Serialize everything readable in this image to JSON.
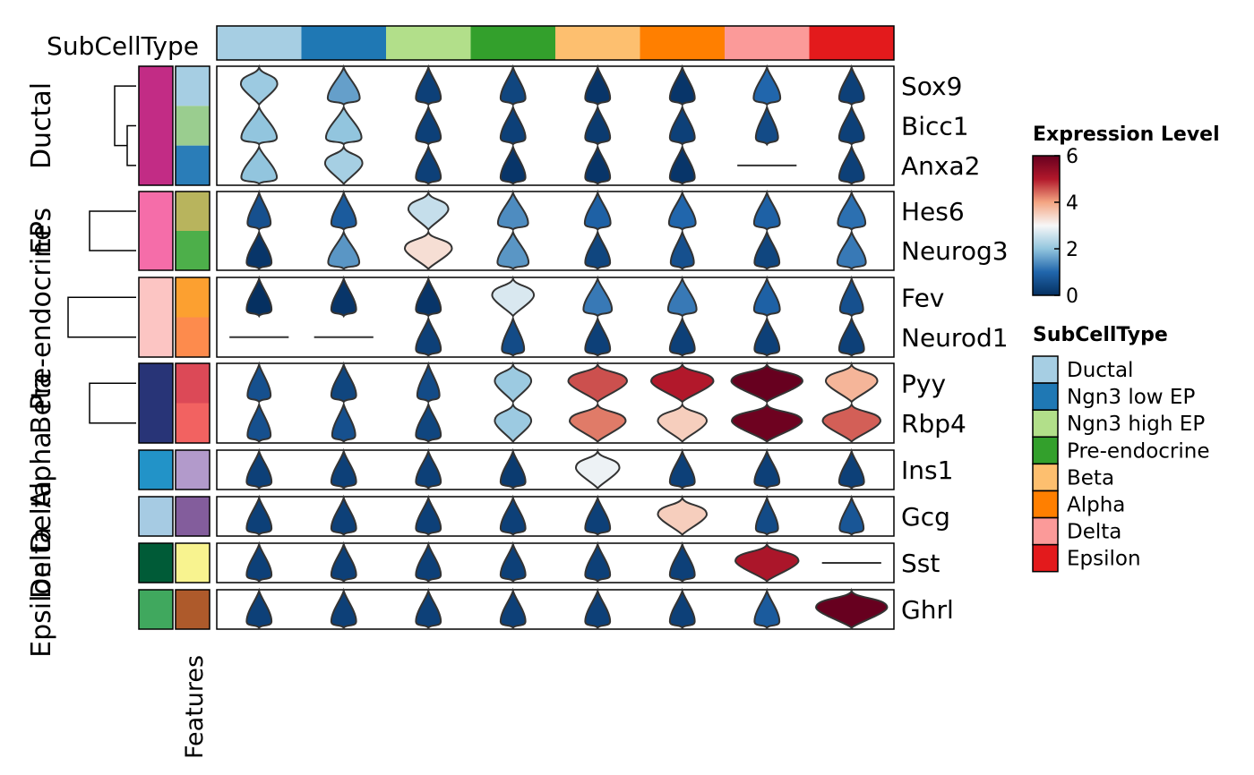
{
  "chart_data": {
    "type": "violin-heatmap",
    "top_annotation": {
      "title": "SubCellType",
      "colors": [
        "#A6CEE3",
        "#1F78B4",
        "#B2DF8A",
        "#33A02C",
        "#FDBF6F",
        "#FF7F00",
        "#FB9A99",
        "#E31A1C"
      ]
    },
    "categories": [
      "Ductal",
      "Ngn3 low EP",
      "Ngn3 high EP",
      "Pre-endocrine",
      "Beta",
      "Alpha",
      "Delta",
      "Epsilon"
    ],
    "row_groups": [
      {
        "label": "Ductal",
        "color": "#C22C85",
        "features": [
          "Sox9",
          "Bicc1",
          "Anxa2"
        ],
        "feature_colors": [
          "#A6CEE3",
          "#9ACD8F",
          "#2A7DB8"
        ]
      },
      {
        "label": "EPs",
        "color": "#F56DA9",
        "features": [
          "Hes6",
          "Neurog3"
        ],
        "feature_colors": [
          "#B8B45D",
          "#4DAF4A"
        ]
      },
      {
        "label": "Pre-endocrine",
        "color": "#FCC5C3",
        "features": [
          "Fev",
          "Neurod1"
        ],
        "feature_colors": [
          "#FCA030",
          "#FD8B4D"
        ]
      },
      {
        "label": "Beta",
        "color": "#283477",
        "features": [
          "Pyy",
          "Rbp4"
        ],
        "feature_colors": [
          "#DC4957",
          "#F26261"
        ]
      },
      {
        "label": "Alpha",
        "color": "#2293C8",
        "features": [
          "Ins1"
        ],
        "feature_colors": [
          "#B29ACB"
        ]
      },
      {
        "label": "Delta",
        "color": "#A6CBE3",
        "features": [
          "Gcg"
        ],
        "feature_colors": [
          "#835D9C"
        ]
      },
      {
        "label": "Delta",
        "color": "#005B37",
        "features": [
          "Sst"
        ],
        "feature_colors": [
          "#F8F38F"
        ]
      },
      {
        "label": "Epsilon",
        "color": "#40A85E",
        "features": [
          "Ghrl"
        ],
        "feature_colors": [
          "#AE5A2B"
        ]
      }
    ],
    "features_axis_label": "Features",
    "expression_level": {
      "Sox9": [
        2.1,
        1.6,
        0.3,
        0.4,
        0.1,
        0.1,
        1.0,
        0.3
      ],
      "Bicc1": [
        2.0,
        2.0,
        0.3,
        0.3,
        0.2,
        0.3,
        0.5,
        0.3
      ],
      "Anxa2": [
        2.0,
        2.2,
        0.3,
        0.1,
        0.1,
        0.1,
        null,
        0.3
      ],
      "Hes6": [
        0.6,
        0.8,
        2.5,
        1.4,
        0.9,
        1.0,
        0.9,
        1.1
      ],
      "Neurog3": [
        0.1,
        1.5,
        3.3,
        1.5,
        0.4,
        0.6,
        0.4,
        1.2
      ],
      "Fev": [
        0.0,
        0.1,
        0.1,
        2.7,
        1.2,
        1.2,
        0.9,
        0.6
      ],
      "Neurod1": [
        null,
        null,
        0.3,
        0.5,
        0.3,
        0.3,
        0.3,
        0.3
      ],
      "Pyy": [
        0.6,
        0.4,
        0.5,
        2.1,
        4.6,
        5.0,
        6.0,
        3.8
      ],
      "Rbp4": [
        0.6,
        0.6,
        0.4,
        2.1,
        4.3,
        3.5,
        5.9,
        4.5
      ],
      "Ins1": [
        0.3,
        0.3,
        0.3,
        0.2,
        2.9,
        0.3,
        0.3,
        0.3
      ],
      "Gcg": [
        0.3,
        0.3,
        0.3,
        0.3,
        0.3,
        3.5,
        0.5,
        0.7
      ],
      "Sst": [
        0.3,
        0.3,
        0.3,
        0.3,
        0.3,
        0.3,
        5.1,
        null
      ],
      "Ghrl": [
        0.3,
        0.3,
        0.3,
        0.3,
        0.3,
        0.3,
        0.8,
        6.0
      ]
    },
    "legend_expression": {
      "title": "Expression Level",
      "min": 0,
      "max": 6,
      "ticks": [
        0,
        2,
        4,
        6
      ]
    },
    "legend_category": {
      "title": "SubCellType"
    }
  }
}
